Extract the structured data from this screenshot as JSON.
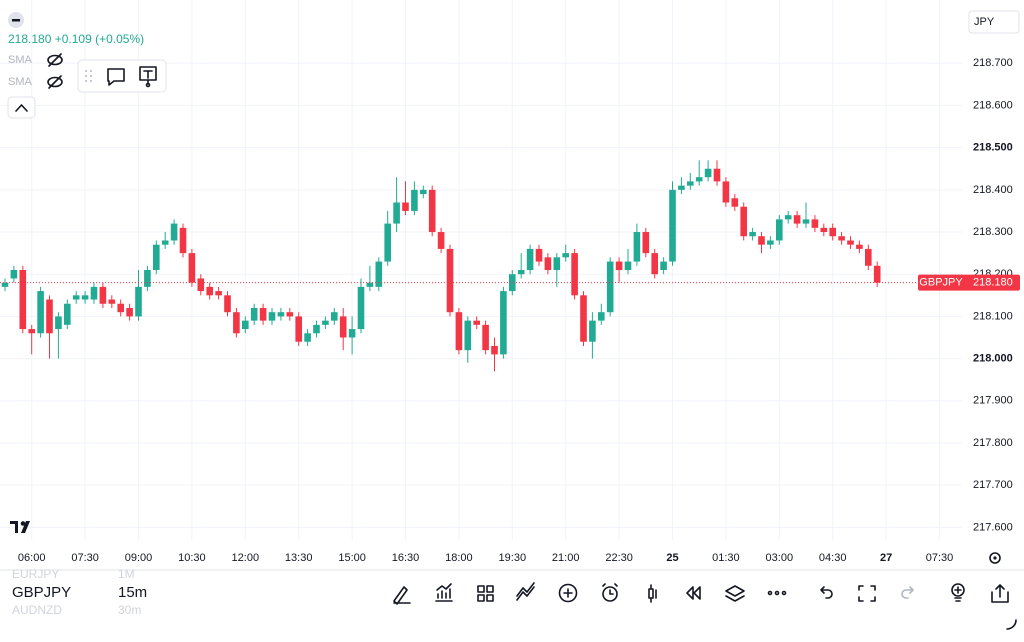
{
  "header": {
    "quote": "218.180 +0.109 (+0.05%)",
    "indicators": [
      "SMA",
      "SMA"
    ]
  },
  "currency": "JPY",
  "chart_data": {
    "type": "candlestick",
    "up_color": "#22ab94",
    "down_color": "#f23645",
    "grid": true,
    "open": [
      218.17,
      218.19,
      218.21,
      218.07,
      218.06,
      218.14,
      218.07,
      218.08,
      218.14,
      218.14,
      218.14,
      218.17,
      218.14,
      218.13,
      218.12,
      218.1,
      218.17,
      218.21,
      218.27,
      218.28,
      218.31,
      218.25,
      218.19,
      218.17,
      218.16,
      218.15,
      218.11,
      218.07,
      218.09,
      218.12,
      218.09,
      218.1,
      218.11,
      218.1,
      218.04,
      218.06,
      218.08,
      218.09,
      218.1,
      218.05,
      218.07,
      218.17,
      218.17,
      218.23,
      218.32,
      218.37,
      218.35,
      218.39,
      218.4,
      218.3,
      218.26,
      218.11,
      218.02,
      218.09,
      218.08,
      218.03,
      218.01,
      218.16,
      218.2,
      218.21,
      218.26,
      218.24,
      218.21,
      218.24,
      218.25,
      218.15,
      218.04,
      218.09,
      218.11,
      218.23,
      218.21,
      218.23,
      218.3,
      218.25,
      218.21,
      218.23,
      218.4,
      218.41,
      218.42,
      218.43,
      218.45,
      218.42,
      218.38,
      218.36,
      218.29,
      218.29,
      218.27,
      218.28,
      218.33,
      218.34,
      218.32,
      218.33,
      218.31,
      218.31,
      218.29,
      218.28,
      218.27,
      218.26,
      218.22
    ],
    "high": [
      218.19,
      218.22,
      218.22,
      218.08,
      218.17,
      218.15,
      218.11,
      218.14,
      218.16,
      218.16,
      218.18,
      218.18,
      218.15,
      218.14,
      218.13,
      218.21,
      218.22,
      218.28,
      218.3,
      218.33,
      218.32,
      218.26,
      218.2,
      218.18,
      218.17,
      218.16,
      218.12,
      218.1,
      218.13,
      218.13,
      218.12,
      218.12,
      218.12,
      218.11,
      218.07,
      218.09,
      218.1,
      218.12,
      218.12,
      218.1,
      218.19,
      218.22,
      218.24,
      218.35,
      218.43,
      218.42,
      218.42,
      218.41,
      218.41,
      218.31,
      218.27,
      218.12,
      218.1,
      218.1,
      218.09,
      218.05,
      218.17,
      218.21,
      218.25,
      218.27,
      218.27,
      218.25,
      218.25,
      218.27,
      218.26,
      218.16,
      218.11,
      218.13,
      218.24,
      218.24,
      218.26,
      218.32,
      218.31,
      218.26,
      218.24,
      218.42,
      218.43,
      218.44,
      218.47,
      218.47,
      218.47,
      218.43,
      218.39,
      218.37,
      218.31,
      218.3,
      218.29,
      218.34,
      218.35,
      218.35,
      218.37,
      218.34,
      218.32,
      218.32,
      218.3,
      218.29,
      218.28,
      218.27,
      218.23
    ],
    "low": [
      218.16,
      218.18,
      218.06,
      218.01,
      218.05,
      218.0,
      218.0,
      218.07,
      218.13,
      218.13,
      218.13,
      218.12,
      218.12,
      218.1,
      218.09,
      218.09,
      218.16,
      218.2,
      218.26,
      218.27,
      218.24,
      218.17,
      218.15,
      218.14,
      218.14,
      218.1,
      218.05,
      218.06,
      218.08,
      218.08,
      218.08,
      218.09,
      218.09,
      218.03,
      218.03,
      218.05,
      218.07,
      218.08,
      218.02,
      218.01,
      218.06,
      218.16,
      218.16,
      218.22,
      218.3,
      218.34,
      218.34,
      218.38,
      218.29,
      218.25,
      218.1,
      218.01,
      217.99,
      218.07,
      218.01,
      217.97,
      218.0,
      218.15,
      218.19,
      218.2,
      218.22,
      218.2,
      218.17,
      218.23,
      218.14,
      218.03,
      218.0,
      218.08,
      218.1,
      218.18,
      218.2,
      218.22,
      218.24,
      218.19,
      218.2,
      218.22,
      218.39,
      218.4,
      218.41,
      218.42,
      218.41,
      218.36,
      218.35,
      218.28,
      218.28,
      218.25,
      218.26,
      218.27,
      218.32,
      218.31,
      218.31,
      218.3,
      218.29,
      218.28,
      218.27,
      218.26,
      218.25,
      218.21,
      218.17
    ],
    "close": [
      218.18,
      218.21,
      218.07,
      218.06,
      218.16,
      218.06,
      218.1,
      218.13,
      218.15,
      218.15,
      218.17,
      218.13,
      218.13,
      218.11,
      218.1,
      218.17,
      218.21,
      218.27,
      218.28,
      218.32,
      218.25,
      218.18,
      218.16,
      218.15,
      218.15,
      218.11,
      218.06,
      218.09,
      218.12,
      218.09,
      218.11,
      218.11,
      218.1,
      218.04,
      218.06,
      218.08,
      218.09,
      218.11,
      218.05,
      218.07,
      218.17,
      218.18,
      218.23,
      218.32,
      218.37,
      218.35,
      218.4,
      218.4,
      218.3,
      218.26,
      218.11,
      218.02,
      218.09,
      218.08,
      218.02,
      218.01,
      218.16,
      218.2,
      218.21,
      218.26,
      218.23,
      218.21,
      218.24,
      218.25,
      218.15,
      218.04,
      218.09,
      218.11,
      218.23,
      218.21,
      218.23,
      218.3,
      218.25,
      218.2,
      218.23,
      218.4,
      218.41,
      218.42,
      218.43,
      218.45,
      218.42,
      218.37,
      218.36,
      218.29,
      218.3,
      218.27,
      218.28,
      218.33,
      218.34,
      218.32,
      218.33,
      218.31,
      218.3,
      218.29,
      218.28,
      218.27,
      218.26,
      218.22,
      218.18
    ],
    "ylim": [
      217.57,
      218.85
    ],
    "yticks": [
      {
        "value": 217.6,
        "label": "217.600"
      },
      {
        "value": 217.7,
        "label": "217.700"
      },
      {
        "value": 217.8,
        "label": "217.800"
      },
      {
        "value": 217.9,
        "label": "217.900"
      },
      {
        "value": 218.0,
        "label": "218.000"
      },
      {
        "value": 218.1,
        "label": "218.100"
      },
      {
        "value": 218.2,
        "label": "218.200"
      },
      {
        "value": 218.3,
        "label": "218.300"
      },
      {
        "value": 218.4,
        "label": "218.400"
      },
      {
        "value": 218.5,
        "label": "218.500"
      },
      {
        "value": 218.6,
        "label": "218.600"
      },
      {
        "value": 218.7,
        "label": "218.700"
      }
    ],
    "x_tick_labels": [
      "06:00",
      "07:30",
      "09:00",
      "10:30",
      "12:00",
      "13:30",
      "15:00",
      "16:30",
      "18:00",
      "19:30",
      "21:00",
      "22:30",
      "25",
      "01:30",
      "03:00",
      "04:30",
      "27",
      "07:30"
    ],
    "last_price": {
      "symbol": "GBPJPY",
      "value": 218.18,
      "label": "218.180"
    }
  },
  "watchlist": [
    {
      "symbol": "EURJPY",
      "interval": "1M"
    },
    {
      "symbol": "GBPJPY",
      "interval": "15m"
    },
    {
      "symbol": "AUDNZD",
      "interval": "30m"
    }
  ]
}
